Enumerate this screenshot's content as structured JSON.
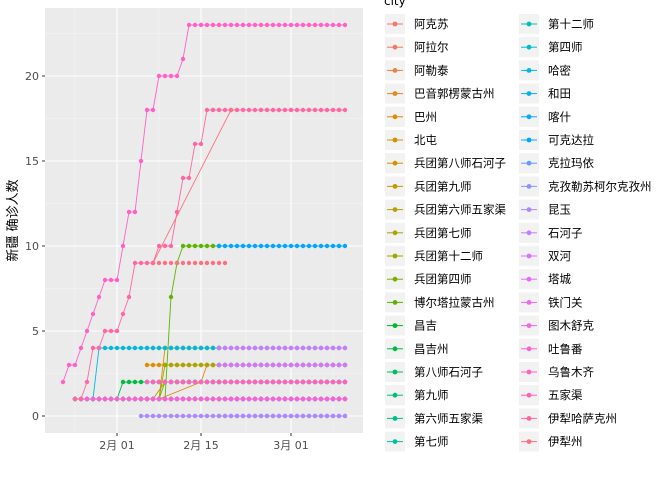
{
  "chart_data": {
    "type": "line",
    "title": "",
    "xlabel": "",
    "ylabel": "新疆 确诊人数",
    "x_ticks": [
      {
        "label": "2月 01",
        "date": "2020-02-01"
      },
      {
        "label": "2月 15",
        "date": "2020-02-15"
      },
      {
        "label": "3月 01",
        "date": "2020-03-01"
      }
    ],
    "xlim": [
      "2020-01-20",
      "2020-03-13"
    ],
    "y_ticks": [
      0,
      5,
      10,
      15,
      20
    ],
    "ylim": [
      -1,
      24
    ],
    "grid": true,
    "legend": {
      "title": "city",
      "position": "right",
      "columns": 2
    },
    "series": [
      {
        "name": "阿克苏",
        "color": "#F8766D",
        "points": [
          [
            "2020-01-25",
            1
          ],
          [
            "2020-03-10",
            1
          ]
        ]
      },
      {
        "name": "阿拉尔",
        "color": "#F37B59",
        "points": [
          [
            "2020-01-25",
            1
          ],
          [
            "2020-03-10",
            1
          ]
        ]
      },
      {
        "name": "阿勒泰",
        "color": "#ED8141",
        "points": [
          [
            "2020-01-25",
            1
          ],
          [
            "2020-03-10",
            1
          ]
        ]
      },
      {
        "name": "巴音郭楞蒙古州",
        "color": "#E7861B",
        "points": [
          [
            "2020-01-25",
            1
          ],
          [
            "2020-02-08",
            1
          ],
          [
            "2020-02-15",
            2
          ],
          [
            "2020-02-16",
            3
          ],
          [
            "2020-03-10",
            3
          ]
        ]
      },
      {
        "name": "巴州",
        "color": "#DF8C00",
        "points": [
          [
            "2020-02-06",
            3
          ],
          [
            "2020-03-10",
            3
          ]
        ]
      },
      {
        "name": "北屯",
        "color": "#D79000",
        "points": [
          [
            "2020-02-06",
            4
          ],
          [
            "2020-02-18",
            4
          ]
        ]
      },
      {
        "name": "兵团第八师石河子",
        "color": "#CF9400",
        "points": [
          [
            "2020-01-25",
            1
          ],
          [
            "2020-02-08",
            1
          ],
          [
            "2020-02-09",
            4
          ],
          [
            "2020-02-18",
            4
          ]
        ]
      },
      {
        "name": "兵团第九师",
        "color": "#C49A00",
        "points": [
          [
            "2020-01-25",
            1
          ],
          [
            "2020-02-10",
            1
          ],
          [
            "2020-02-18",
            1
          ]
        ]
      },
      {
        "name": "兵团第六师五家渠",
        "color": "#B9A000",
        "points": [
          [
            "2020-01-25",
            1
          ],
          [
            "2020-02-07",
            1
          ],
          [
            "2020-02-09",
            2
          ],
          [
            "2020-02-18",
            2
          ]
        ]
      },
      {
        "name": "兵团第七师",
        "color": "#ABA300",
        "points": [
          [
            "2020-01-25",
            1
          ],
          [
            "2020-02-08",
            1
          ],
          [
            "2020-02-09",
            3
          ],
          [
            "2020-02-18",
            3
          ]
        ]
      },
      {
        "name": "兵团第十二师",
        "color": "#9CA700",
        "points": [
          [
            "2020-01-25",
            1
          ],
          [
            "2020-02-10",
            1
          ],
          [
            "2020-02-18",
            1
          ]
        ]
      },
      {
        "name": "兵团第四师",
        "color": "#7CAE00",
        "points": [
          [
            "2020-01-25",
            1
          ],
          [
            "2020-02-08",
            1
          ],
          [
            "2020-02-09",
            2
          ],
          [
            "2020-02-18",
            2
          ]
        ]
      },
      {
        "name": "博尔塔拉蒙古州",
        "color": "#5DB300",
        "points": [
          [
            "2020-01-25",
            1
          ],
          [
            "2020-02-09",
            1
          ],
          [
            "2020-02-10",
            7
          ],
          [
            "2020-02-11",
            9
          ],
          [
            "2020-02-12",
            10
          ],
          [
            "2020-02-18",
            10
          ]
        ]
      },
      {
        "name": "昌吉",
        "color": "#00B81F",
        "points": [
          [
            "2020-02-06",
            2
          ],
          [
            "2020-03-10",
            2
          ]
        ]
      },
      {
        "name": "昌吉州",
        "color": "#00BA42",
        "points": [
          [
            "2020-01-25",
            1
          ],
          [
            "2020-02-01",
            1
          ],
          [
            "2020-02-02",
            2
          ],
          [
            "2020-02-06",
            2
          ],
          [
            "2020-02-18",
            2
          ]
        ]
      },
      {
        "name": "第八师石河子",
        "color": "#00BC5E",
        "points": [
          [
            "2020-02-18",
            4
          ],
          [
            "2020-03-10",
            4
          ]
        ]
      },
      {
        "name": "第九师",
        "color": "#00BE77",
        "points": [
          [
            "2020-02-18",
            1
          ],
          [
            "2020-03-10",
            1
          ]
        ]
      },
      {
        "name": "第六师五家渠",
        "color": "#00BF8D",
        "points": [
          [
            "2020-02-18",
            2
          ],
          [
            "2020-03-10",
            2
          ]
        ]
      },
      {
        "name": "第七师",
        "color": "#00C1A3",
        "points": [
          [
            "2020-02-18",
            3
          ],
          [
            "2020-03-10",
            3
          ]
        ]
      },
      {
        "name": "第十二师",
        "color": "#00BFB7",
        "points": [
          [
            "2020-02-18",
            1
          ],
          [
            "2020-03-10",
            1
          ]
        ]
      },
      {
        "name": "第四师",
        "color": "#00BCCB",
        "points": [
          [
            "2020-02-18",
            2
          ],
          [
            "2020-03-10",
            2
          ]
        ]
      },
      {
        "name": "哈密",
        "color": "#00B8DE",
        "points": [
          [
            "2020-01-25",
            1
          ],
          [
            "2020-01-28",
            1
          ],
          [
            "2020-01-29",
            4
          ],
          [
            "2020-02-06",
            4
          ],
          [
            "2020-02-18",
            4
          ]
        ]
      },
      {
        "name": "和田",
        "color": "#00B4EF",
        "points": [
          [
            "2020-01-25",
            1
          ],
          [
            "2020-03-10",
            1
          ]
        ]
      },
      {
        "name": "喀什",
        "color": "#00ADFA",
        "points": [
          [
            "2020-02-18",
            1
          ],
          [
            "2020-03-10",
            1
          ]
        ]
      },
      {
        "name": "可克达拉",
        "color": "#00A5FF",
        "points": [
          [
            "2020-02-18",
            10
          ],
          [
            "2020-03-10",
            10
          ]
        ]
      },
      {
        "name": "克拉玛依",
        "color": "#619CFF",
        "points": [
          [
            "2020-02-06",
            2
          ],
          [
            "2020-03-10",
            2
          ]
        ]
      },
      {
        "name": "克孜勒苏柯尔克孜州",
        "color": "#8F91FF",
        "points": [
          [
            "2020-02-18",
            0
          ],
          [
            "2020-03-10",
            0
          ]
        ]
      },
      {
        "name": "昆玉",
        "color": "#AC88FF",
        "points": [
          [
            "2020-02-05",
            0
          ],
          [
            "2020-03-10",
            0
          ]
        ]
      },
      {
        "name": "石河子",
        "color": "#C77CFF",
        "points": [
          [
            "2020-02-18",
            4
          ],
          [
            "2020-03-10",
            4
          ]
        ]
      },
      {
        "name": "双河",
        "color": "#D575FE",
        "points": [
          [
            "2020-02-18",
            3
          ],
          [
            "2020-03-10",
            3
          ]
        ]
      },
      {
        "name": "塔城",
        "color": "#E36EF6",
        "points": [
          [
            "2020-01-25",
            1
          ],
          [
            "2020-03-10",
            1
          ]
        ]
      },
      {
        "name": "铁门关",
        "color": "#ED68ED",
        "points": [
          [
            "2020-02-18",
            1
          ],
          [
            "2020-03-10",
            1
          ]
        ]
      },
      {
        "name": "图木舒克",
        "color": "#F564E3",
        "points": [
          [
            "2020-02-18",
            2
          ],
          [
            "2020-03-10",
            2
          ]
        ]
      },
      {
        "name": "吐鲁番",
        "color": "#FB61D7",
        "points": [
          [
            "2020-01-25",
            1
          ],
          [
            "2020-03-10",
            1
          ]
        ]
      },
      {
        "name": "乌鲁木齐",
        "color": "#FF61C9",
        "points": [
          [
            "2020-01-23",
            2
          ],
          [
            "2020-01-24",
            3
          ],
          [
            "2020-01-25",
            3
          ],
          [
            "2020-01-26",
            4
          ],
          [
            "2020-01-27",
            5
          ],
          [
            "2020-01-28",
            6
          ],
          [
            "2020-01-29",
            7
          ],
          [
            "2020-01-30",
            8
          ],
          [
            "2020-01-31",
            8
          ],
          [
            "2020-02-01",
            8
          ],
          [
            "2020-02-02",
            10
          ],
          [
            "2020-02-03",
            12
          ],
          [
            "2020-02-04",
            12
          ],
          [
            "2020-02-05",
            15
          ],
          [
            "2020-02-06",
            18
          ],
          [
            "2020-02-07",
            18
          ],
          [
            "2020-02-08",
            20
          ],
          [
            "2020-02-09",
            20
          ],
          [
            "2020-02-10",
            20
          ],
          [
            "2020-02-11",
            20
          ],
          [
            "2020-02-12",
            21
          ],
          [
            "2020-02-13",
            23
          ],
          [
            "2020-03-10",
            23
          ]
        ]
      },
      {
        "name": "五家渠",
        "color": "#FF63B9",
        "points": [
          [
            "2020-02-06",
            2
          ],
          [
            "2020-03-10",
            2
          ]
        ]
      },
      {
        "name": "伊犁哈萨克州",
        "color": "#FF67A4",
        "points": [
          [
            "2020-01-25",
            1
          ],
          [
            "2020-01-26",
            1
          ],
          [
            "2020-01-27",
            2
          ],
          [
            "2020-01-28",
            4
          ],
          [
            "2020-01-29",
            4
          ],
          [
            "2020-01-30",
            5
          ],
          [
            "2020-01-31",
            5
          ],
          [
            "2020-02-01",
            5
          ],
          [
            "2020-02-02",
            6
          ],
          [
            "2020-02-03",
            7
          ],
          [
            "2020-02-04",
            9
          ],
          [
            "2020-02-05",
            9
          ],
          [
            "2020-02-06",
            9
          ],
          [
            "2020-02-07",
            9
          ],
          [
            "2020-02-08",
            10
          ],
          [
            "2020-02-09",
            10
          ],
          [
            "2020-02-10",
            10
          ],
          [
            "2020-02-11",
            12
          ],
          [
            "2020-02-12",
            14
          ],
          [
            "2020-02-13",
            14
          ],
          [
            "2020-02-14",
            16
          ],
          [
            "2020-02-15",
            16
          ],
          [
            "2020-02-16",
            18
          ],
          [
            "2020-02-17",
            18
          ],
          [
            "2020-02-18",
            18
          ],
          [
            "2020-03-10",
            18
          ]
        ]
      },
      {
        "name": "伊犁州",
        "color": "#FC717F",
        "points": [
          [
            "2020-02-07",
            9
          ],
          [
            "2020-02-20",
            18
          ]
        ]
      }
    ]
  }
}
